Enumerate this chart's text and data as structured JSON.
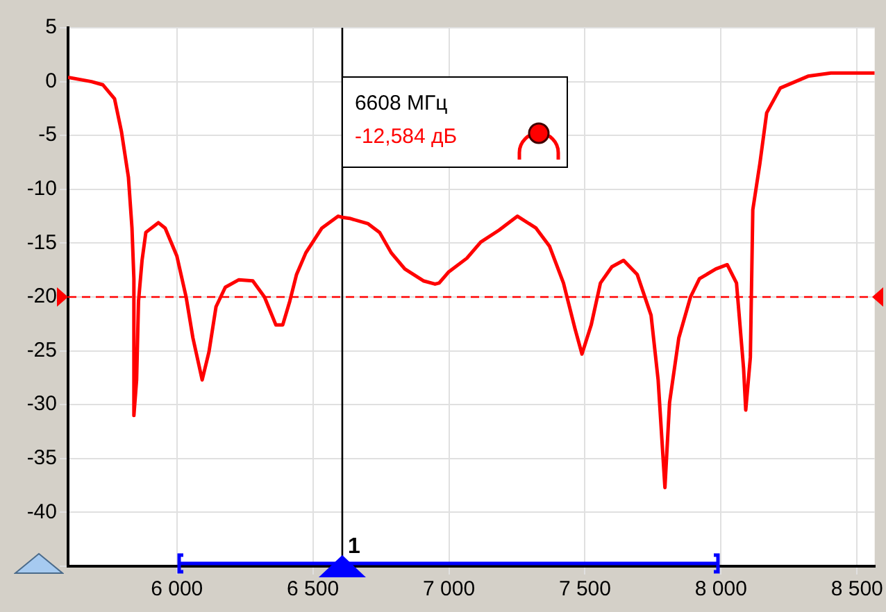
{
  "chart_data": {
    "type": "line",
    "x": [
      5600,
      5686,
      5728,
      5771,
      5796,
      5822,
      5835,
      5842,
      5842,
      5852,
      5859,
      5872,
      5886,
      5932,
      5957,
      6000,
      6034,
      6059,
      6093,
      6118,
      6144,
      6178,
      6228,
      6279,
      6322,
      6364,
      6389,
      6415,
      6440,
      6474,
      6533,
      6593,
      6608,
      6635,
      6703,
      6745,
      6788,
      6838,
      6906,
      6949,
      6964,
      6998,
      7066,
      7117,
      7184,
      7252,
      7320,
      7370,
      7421,
      7464,
      7489,
      7523,
      7557,
      7599,
      7642,
      7692,
      7743,
      7769,
      7794,
      7811,
      7845,
      7888,
      7921,
      7981,
      8023,
      8057,
      8083,
      8091,
      8108,
      8117,
      8143,
      8168,
      8218,
      8320,
      8404,
      8565
    ],
    "series": [
      {
        "color": "#ff0000",
        "values": [
          0.4,
          0,
          -0.3,
          -1.6,
          -4.6,
          -8.9,
          -13.6,
          -18.3,
          -31,
          -27.7,
          -20.4,
          -16.6,
          -14,
          -13.1,
          -13.6,
          -16.2,
          -20,
          -23.8,
          -27.7,
          -25.1,
          -20.9,
          -19.1,
          -18.4,
          -18.5,
          -20,
          -22.6,
          -22.6,
          -20.4,
          -17.9,
          -15.9,
          -13.6,
          -12.5,
          -12.6,
          -12.7,
          -13.2,
          -14,
          -15.9,
          -17.4,
          -18.5,
          -18.8,
          -18.7,
          -17.7,
          -16.4,
          -14.9,
          -13.8,
          -12.5,
          -13.6,
          -15.3,
          -18.7,
          -23,
          -25.3,
          -22.6,
          -18.7,
          -17.2,
          -16.6,
          -17.9,
          -21.7,
          -27.7,
          -37.7,
          -29.8,
          -23.8,
          -20,
          -18.3,
          -17.4,
          -17,
          -18.7,
          -26.6,
          -30.5,
          -25.6,
          -11.9,
          -7.6,
          -2.9,
          -0.6,
          0.5,
          0.8,
          0.8
        ]
      }
    ],
    "xlim": [
      5600,
      8565
    ],
    "ylim": [
      -45,
      5
    ],
    "xticks": [
      {
        "value": 6000,
        "label": "6 000"
      },
      {
        "value": 6500,
        "label": "6 500"
      },
      {
        "value": 7000,
        "label": "7 000"
      },
      {
        "value": 7500,
        "label": "7 500"
      },
      {
        "value": 8000,
        "label": "8 000"
      },
      {
        "value": 8500,
        "label": "8 500"
      }
    ],
    "yticks": [
      5,
      0,
      -5,
      -10,
      -15,
      -20,
      -25,
      -30,
      -35,
      -40,
      {
        "value": -45,
        "label": null
      }
    ],
    "grid": true,
    "marker": "none",
    "line_style": "solid",
    "ref_lines": [
      {
        "axis": "y",
        "value": -20,
        "color": "#ff0000",
        "line_style": "dashed"
      },
      {
        "axis": "x",
        "value": 6608,
        "color": "#000000",
        "line_style": "solid"
      }
    ],
    "annotations": [
      "6608 МГц",
      "-12,584 дБ",
      {
        "text": "1",
        "x": 6608,
        "y": -45
      }
    ]
  }
}
